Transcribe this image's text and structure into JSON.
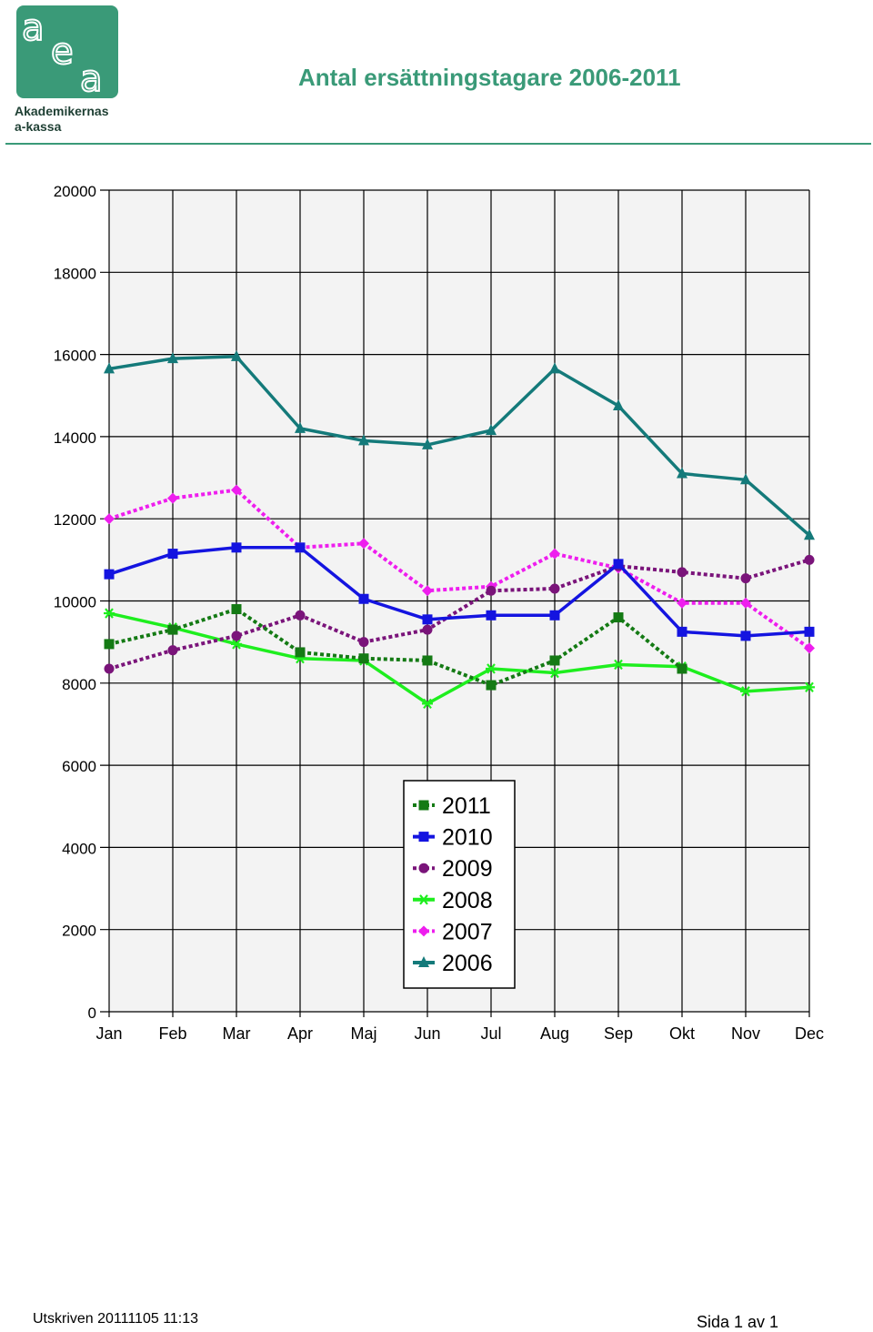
{
  "header": {
    "logo_brand": "Akademikernas",
    "logo_brand_line2": "a-kassa",
    "logo_letters": "aea",
    "brand_color": "#3a9a78"
  },
  "title": "Antal ersättningstagare 2006-2011",
  "footer": {
    "printed": "Utskriven 20111105 11:13",
    "page": "Sida 1 av 1"
  },
  "chart_data": {
    "type": "line",
    "categories": [
      "Jan",
      "Feb",
      "Mar",
      "Apr",
      "Maj",
      "Jun",
      "Jul",
      "Aug",
      "Sep",
      "Okt",
      "Nov",
      "Dec"
    ],
    "ylim": [
      0,
      20000
    ],
    "yticks": [
      "0",
      "2000",
      "4000",
      "6000",
      "8000",
      "10000",
      "12000",
      "14000",
      "16000",
      "18000",
      "20000"
    ],
    "grid": true,
    "legend_position": "center-bottom",
    "series": [
      {
        "name": "2011",
        "color": "#147a14",
        "dashed": true,
        "marker": "square",
        "values": [
          8950,
          9300,
          9800,
          8750,
          8600,
          8550,
          7950,
          8550,
          9600,
          8350,
          null,
          null
        ]
      },
      {
        "name": "2010",
        "color": "#1414e0",
        "dashed": false,
        "marker": "square",
        "values": [
          10650,
          11150,
          11300,
          11300,
          10050,
          9550,
          9650,
          9650,
          10900,
          9250,
          9150,
          9250
        ]
      },
      {
        "name": "2009",
        "color": "#7a147a",
        "dashed": true,
        "marker": "circle",
        "values": [
          8350,
          8800,
          9150,
          9650,
          9000,
          9300,
          10250,
          10300,
          10850,
          10700,
          10550,
          11000
        ]
      },
      {
        "name": "2008",
        "color": "#1eee1e",
        "dashed": false,
        "marker": "star",
        "values": [
          9700,
          9350,
          8950,
          8600,
          8550,
          7500,
          8350,
          8250,
          8450,
          8400,
          7800,
          7900
        ]
      },
      {
        "name": "2007",
        "color": "#ee1eee",
        "dashed": true,
        "marker": "diamond",
        "values": [
          12000,
          12500,
          12700,
          11300,
          11400,
          10250,
          10350,
          11150,
          10800,
          9950,
          9950,
          8850
        ]
      },
      {
        "name": "2006",
        "color": "#147a7a",
        "dashed": false,
        "marker": "triangle",
        "values": [
          15650,
          15900,
          15950,
          14200,
          13900,
          13800,
          14150,
          15650,
          14750,
          13100,
          12950,
          11600
        ]
      }
    ]
  }
}
